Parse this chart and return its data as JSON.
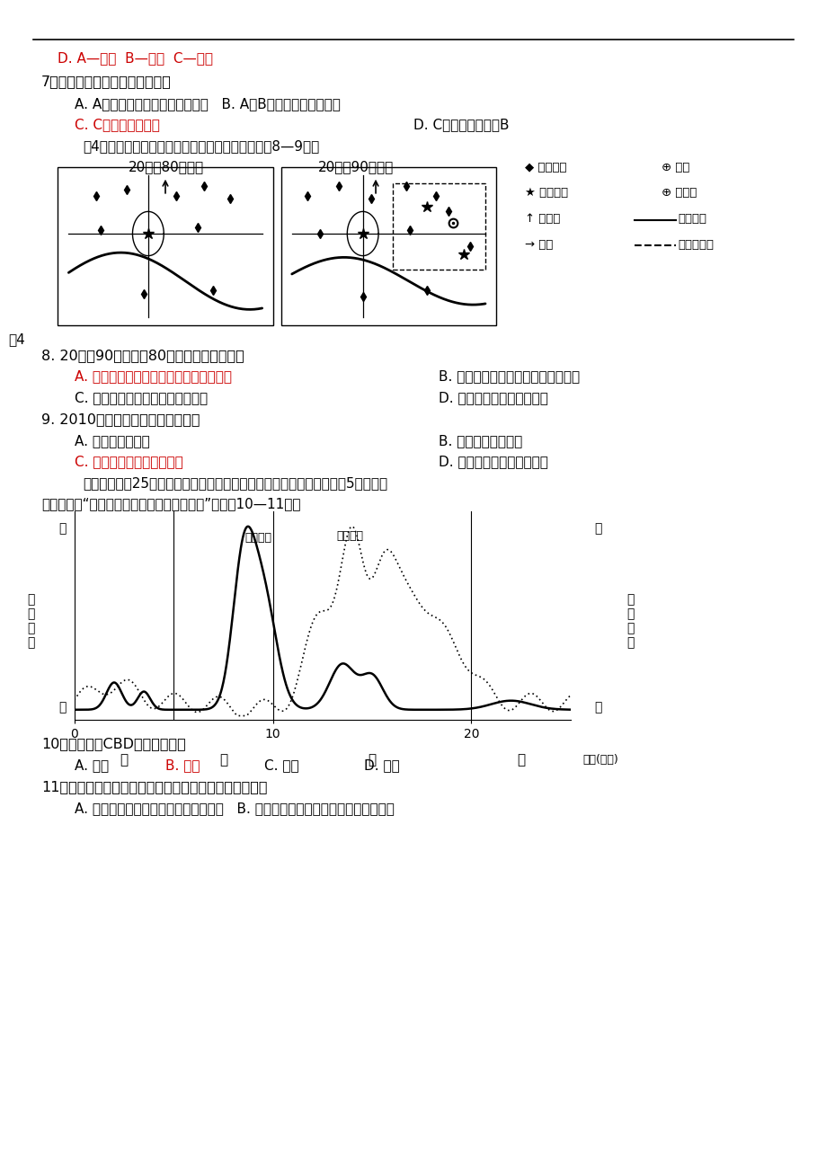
{
  "bg_color": "#ffffff",
  "line1_text": "D. A—小学  B—中学  C—大学",
  "q7_text": "7．有关三个城市的叙述正确的是",
  "q7_A": "A. A服务半径最小，服务范围最大   B. A比B提供的职能种类较多",
  "q7_C": "C. C的城市级别最高",
  "q7_D": "D. C的服务范围小于B",
  "fig4_intro": "图4是位于平原地区的我国南方某城市示意图。完成8—9题。",
  "fig4_left_title": "20世纪80年代初",
  "fig4_right_title": "20世纪90年代末",
  "fig4_label": "图4",
  "q8_text": "8. 20世纪90年代末与80年代初比较，该城市",
  "q8_A": "A. 交通发展促使城区面积向东大规模扩展",
  "q8_B": "B. 城区发展和交通建设不受河流影响",
  "q8_C": "C. 多层次的立体交通网络尚未形成",
  "q8_D": "D. 老商业中心服务范围变小",
  "q9_text": "9. 2010年，该城市新建的商业中心",
  "q9_A": "A. 沿河流两岘分布",
  "q9_B": "B. 沿环线高架路分布",
  "q9_C": "C. 位于城市交通干线交会处",
  "q9_D": "D. 围绕老商业中心均匀分布",
  "fig5_intro1": "某城市东西相25千米，甲、乙、丙、丁分别表示该城市不同的区域。图5为该城市",
  "fig5_intro2": "沿东西方向“人口密度与土地价格分布曲线图”。完成10—11题。",
  "q10_text": "10．该城市的CBD最有可能位于",
  "q10_A": "A. 甲区",
  "q10_B": "B. 乙区",
  "q10_C": "C. 丙区",
  "q10_D": "D. 丁区",
  "q11_text": "11．若甲、乙、丙、丁为四个功能区，下列说法正确的是",
  "q11_AB": "A. 甲区人口密度小，工业区位条件最差   B. 乙区土地价格高，以政府机关用地为主"
}
